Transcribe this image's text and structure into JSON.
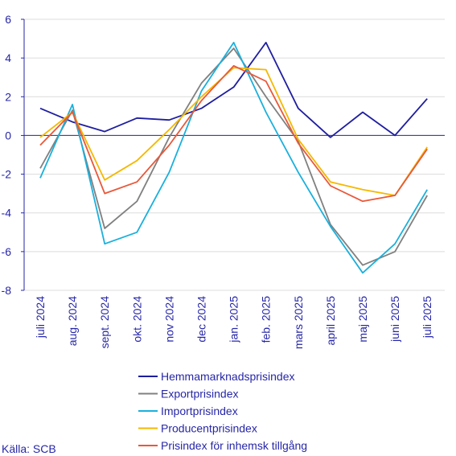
{
  "chart_data": {
    "type": "line",
    "title": "",
    "xlabel": "",
    "ylabel": "",
    "ylim": [
      -8,
      6
    ],
    "yticks": [
      6,
      4,
      2,
      0,
      -2,
      -4,
      -6,
      -8
    ],
    "ytick_labels": [
      "6",
      "4",
      "2",
      "0",
      "-2",
      "-4",
      "-6",
      "-8"
    ],
    "grid": true,
    "legend_placement": "bottom",
    "categories": [
      "juli 2024",
      "aug. 2024",
      "sept. 2024",
      "okt. 2024",
      "nov 2024",
      "dec 2024",
      "jan. 2025",
      "feb. 2025",
      "mars 2025",
      "april 2025",
      "maj 2025",
      "juni 2025",
      "juli 2025"
    ],
    "series": [
      {
        "name": "Hemmamarknadsprisindex",
        "color": "#1e1ea0",
        "values": [
          1.4,
          0.7,
          0.2,
          0.9,
          0.8,
          1.4,
          2.5,
          4.8,
          1.4,
          -0.1,
          1.2,
          0.0,
          1.9
        ]
      },
      {
        "name": "Exportprisindex",
        "color": "#808080",
        "values": [
          -1.7,
          1.3,
          -4.8,
          -3.4,
          -0.1,
          2.7,
          4.5,
          2.0,
          -0.3,
          -4.6,
          -6.7,
          -6.0,
          -3.1
        ]
      },
      {
        "name": "Importprisindex",
        "color": "#1ab0dc",
        "values": [
          -2.2,
          1.6,
          -5.6,
          -5.0,
          -1.9,
          2.3,
          4.8,
          1.2,
          -1.9,
          -4.7,
          -7.1,
          -5.6,
          -2.8
        ]
      },
      {
        "name": "Producentprisindex",
        "color": "#f5b800",
        "values": [
          -0.1,
          1.2,
          -2.3,
          -1.3,
          0.3,
          2.0,
          3.5,
          3.4,
          -0.2,
          -2.4,
          -2.8,
          -3.1,
          -0.6
        ]
      },
      {
        "name": "Prisindex för inhemsk tillgång",
        "color": "#e8583a",
        "values": [
          -0.5,
          1.2,
          -3.0,
          -2.4,
          -0.5,
          1.8,
          3.6,
          2.8,
          -0.4,
          -2.6,
          -3.4,
          -3.1,
          -0.7
        ]
      }
    ]
  },
  "source": "Källa: SCB"
}
